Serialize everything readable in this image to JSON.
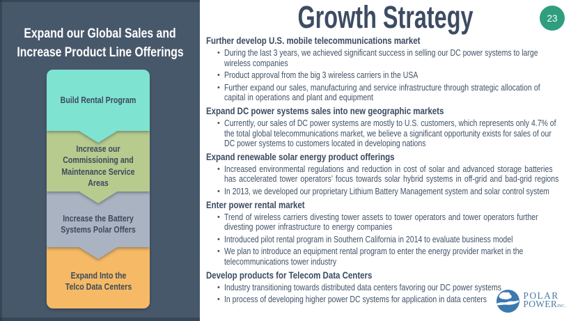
{
  "slide": {
    "title": "Growth Strategy",
    "page_number": "23"
  },
  "sidebar": {
    "title_line1": "Expand our Global Sales and",
    "title_line2": "Increase Product Line Offerings",
    "background": "#48586b",
    "steps": [
      {
        "label": "Build Rental Program",
        "color": "#7fe3d1"
      },
      {
        "label": "Increase our Commissioning and Maintenance Service Areas",
        "color": "#b7cb8f"
      },
      {
        "label": "Increase the Battery Systems Polar Offers",
        "color": "#a9b3c2"
      },
      {
        "label": "Expand Into the Telco Data Centers",
        "color": "#f6ba66"
      }
    ]
  },
  "sections": [
    {
      "heading": "Further develop U.S. mobile telecommunications market",
      "bullets": [
        "During the last 3 years, we achieved significant success in selling our DC power systems to large wireless companies",
        "Product approval from the big 3 wireless carriers in the USA",
        "Further expand our sales, manufacturing and service infrastructure through strategic allocation of capital in operations and plant and equipment"
      ]
    },
    {
      "heading": "Expand DC power systems sales into new geographic markets",
      "bullets": [
        "Currently, our sales of DC power systems are mostly to U.S. customers, which represents only 4.7% of the total global telecommunications market, we believe a significant opportunity exists for sales of our DC power systems to customers located in developing nations"
      ]
    },
    {
      "heading": "Expand renewable solar energy product offerings",
      "bullets": [
        "Increased environmental regulations and reduction in cost of solar and advanced storage batteries has accelerated tower operators’ focus towards solar hybrid systems in off-grid and bad-grid regions",
        "In 2013, we developed our proprietary Lithium Battery Management system and solar control system"
      ]
    },
    {
      "heading": "Enter power rental market",
      "bullets": [
        "Trend of wireless carriers divesting tower assets to tower operators and tower operators further divesting power infrastructure to energy companies",
        "Introduced pilot rental program in Southern California in 2014 to evaluate business model",
        "We plan to introduce an equipment rental program to enter the energy provider market in the telecommunications tower industry"
      ]
    },
    {
      "heading": "Develop products for Telecom Data Centers",
      "bullets": [
        "Industry transitioning towards distributed data centers favoring our DC power systems",
        "In process of developing higher power DC systems for application in data centers"
      ]
    }
  ],
  "logo": {
    "line1": "POLAR",
    "line2": "POWER",
    "suffix": "INC.",
    "color": "#4a7ba6",
    "accent": "#2f9e7e"
  }
}
